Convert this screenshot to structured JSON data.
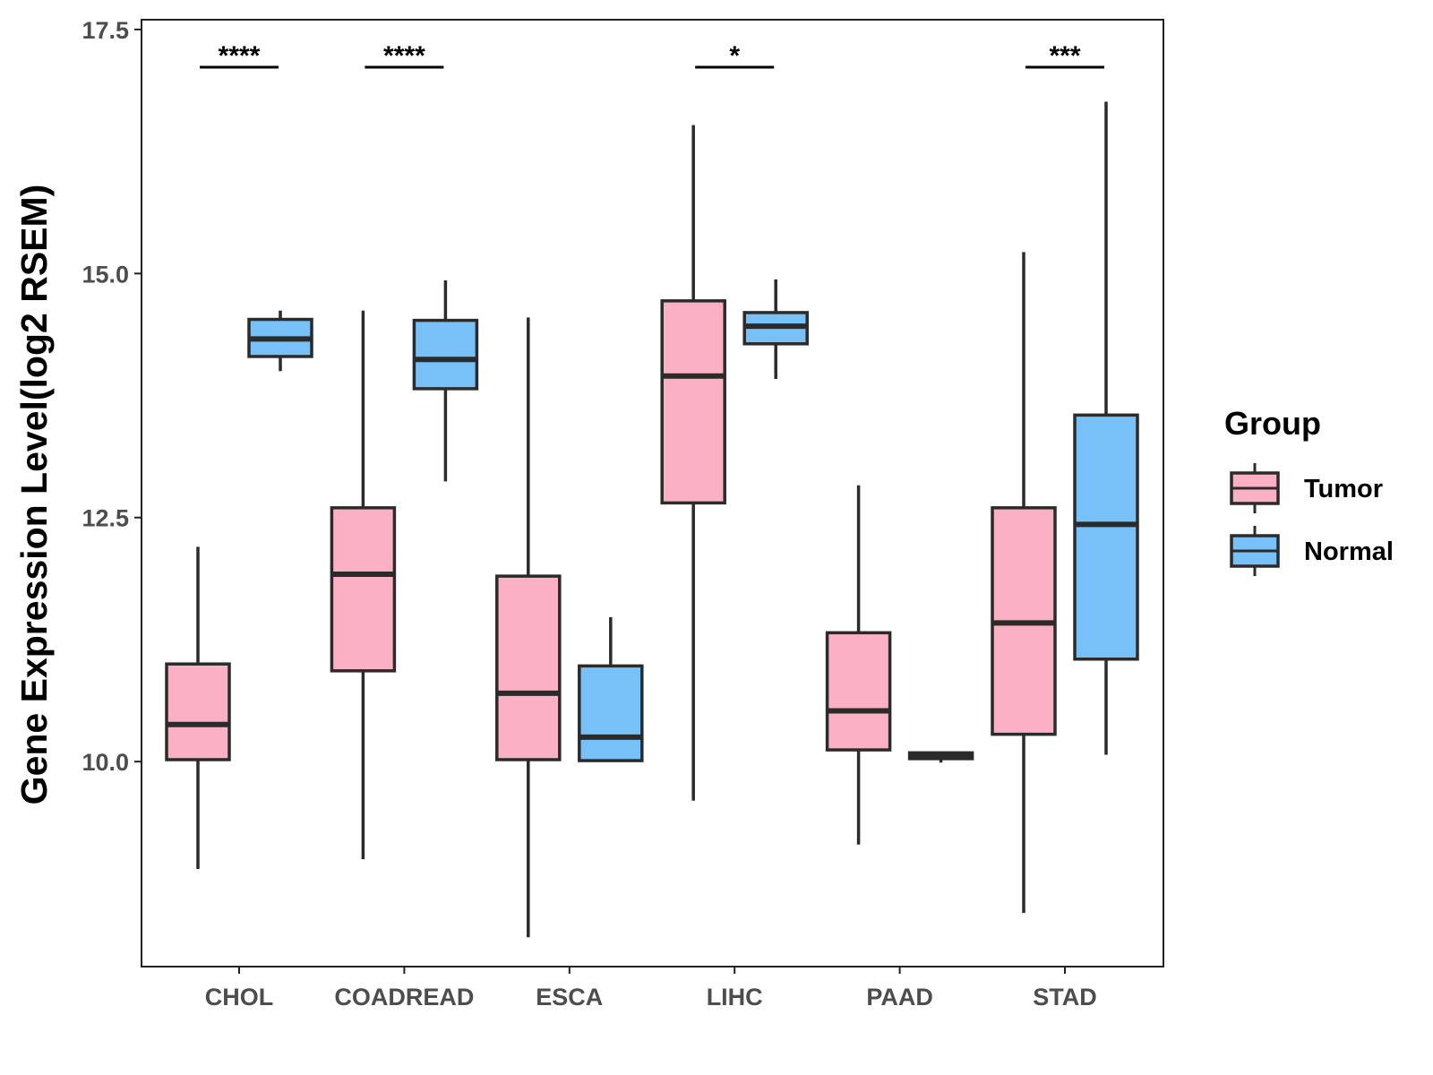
{
  "chart_data": {
    "type": "boxplot",
    "ylabel": "Gene Expression Level(log2 RSEM)",
    "xlabel": "",
    "ylim": [
      7.9,
      17.6
    ],
    "yticks": [
      "10.0",
      "12.5",
      "15.0",
      "17.5"
    ],
    "categories": [
      "CHOL",
      "COADREAD",
      "ESCA",
      "LIHC",
      "PAAD",
      "STAD"
    ],
    "legend": {
      "title": "Group",
      "placement": "right",
      "entries": [
        {
          "name": "Tumor",
          "color": "#FBB1C3"
        },
        {
          "name": "Normal",
          "color": "#78C1F8"
        }
      ]
    },
    "series": [
      {
        "name": "Tumor",
        "color": "#FBB1C3",
        "boxes": [
          {
            "min": 8.9,
            "q1": 10.02,
            "median": 10.38,
            "q3": 11.0,
            "max": 12.2
          },
          {
            "min": 9.0,
            "q1": 10.93,
            "median": 11.92,
            "q3": 12.6,
            "max": 14.62
          },
          {
            "min": 8.2,
            "q1": 10.02,
            "median": 10.7,
            "q3": 11.9,
            "max": 14.55
          },
          {
            "min": 9.6,
            "q1": 12.65,
            "median": 13.95,
            "q3": 14.72,
            "max": 16.52
          },
          {
            "min": 9.15,
            "q1": 10.12,
            "median": 10.52,
            "q3": 11.32,
            "max": 12.83
          },
          {
            "min": 8.45,
            "q1": 10.28,
            "median": 11.42,
            "q3": 12.6,
            "max": 15.22
          }
        ]
      },
      {
        "name": "Normal",
        "color": "#78C1F8",
        "boxes": [
          {
            "min": 14.0,
            "q1": 14.15,
            "median": 14.33,
            "q3": 14.53,
            "max": 14.62
          },
          {
            "min": 12.87,
            "q1": 13.82,
            "median": 14.12,
            "q3": 14.52,
            "max": 14.93
          },
          {
            "min": 10.0,
            "q1": 10.01,
            "median": 10.25,
            "q3": 10.98,
            "max": 11.48
          },
          {
            "min": 13.92,
            "q1": 14.28,
            "median": 14.46,
            "q3": 14.6,
            "max": 14.94
          },
          {
            "min": 9.99,
            "q1": 10.03,
            "median": 10.06,
            "q3": 10.09,
            "max": 10.1
          },
          {
            "min": 10.07,
            "q1": 11.05,
            "median": 12.43,
            "q3": 13.55,
            "max": 16.76
          }
        ]
      }
    ],
    "significance": [
      {
        "category": "CHOL",
        "label": "****"
      },
      {
        "category": "COADREAD",
        "label": "****"
      },
      {
        "category": "LIHC",
        "label": "*"
      },
      {
        "category": "STAD",
        "label": "***"
      }
    ]
  }
}
